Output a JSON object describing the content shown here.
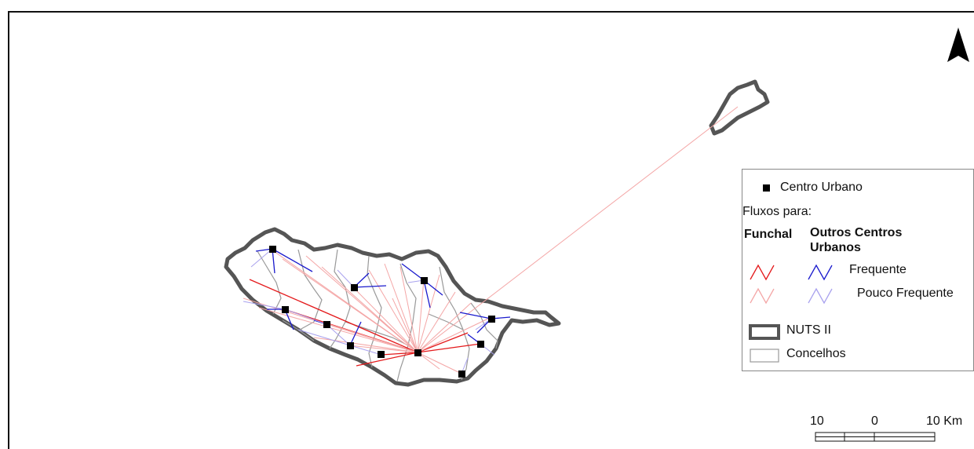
{
  "legend": {
    "urban_center": "Centro Urbano",
    "flows_to": "Fluxos para:",
    "funchal": "Funchal",
    "other_centers_line1": "Outros Centros",
    "other_centers_line2": "Urbanos",
    "frequent": "Frequente",
    "infrequent": "Pouco Frequente",
    "nuts": "NUTS II",
    "municipalities": "Concelhos"
  },
  "scale": {
    "left": "10",
    "mid": "0",
    "right": "10 Km"
  },
  "colors": {
    "funchal_frequent": "#e41a1c",
    "funchal_infrequent": "#f4a6a6",
    "other_frequent": "#1a1acd",
    "other_infrequent": "#a9a2ee",
    "nuts": "#555555",
    "concelhos": "#999999"
  },
  "north_arrow": "north-arrow-icon"
}
